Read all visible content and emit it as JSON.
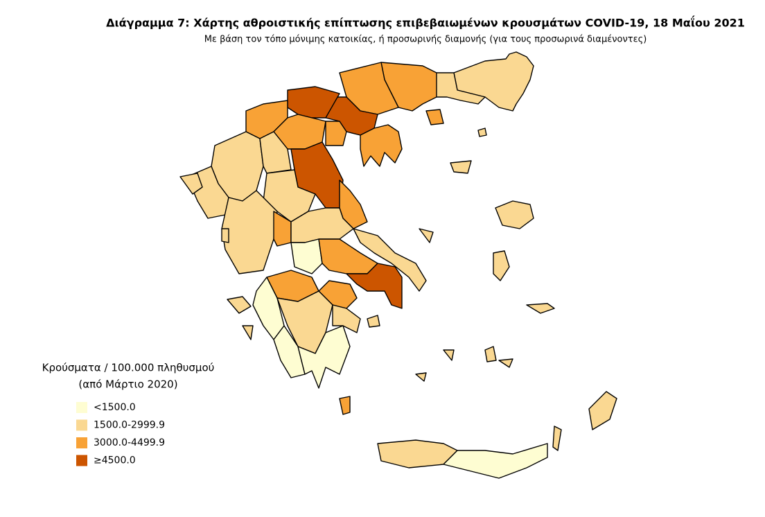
{
  "header": {
    "title": "Διάγραμμα 7: Χάρτης αθροιστικής επίπτωσης επιβεβαιωμένων κρουσμάτων COVID-19, 18 Μαΐου 2021",
    "subtitle": "Με βάση τον τόπο μόνιμης κατοικίας, ή προσωρινής διαμονής (για τους προσωρινά διαμένοντες)"
  },
  "legend": {
    "title": [
      "Κρούσματα / 100.000 πληθυσμού",
      "(από Μάρτιο 2020)"
    ],
    "items": [
      {
        "label": "<1500.0",
        "color": "#fefdd2"
      },
      {
        "label": "1500.0-2999.9",
        "color": "#fad892"
      },
      {
        "label": "3000.0-4499.9",
        "color": "#f8a236"
      },
      {
        "label": "≥4500.0",
        "color": "#cc5500"
      }
    ]
  }
}
